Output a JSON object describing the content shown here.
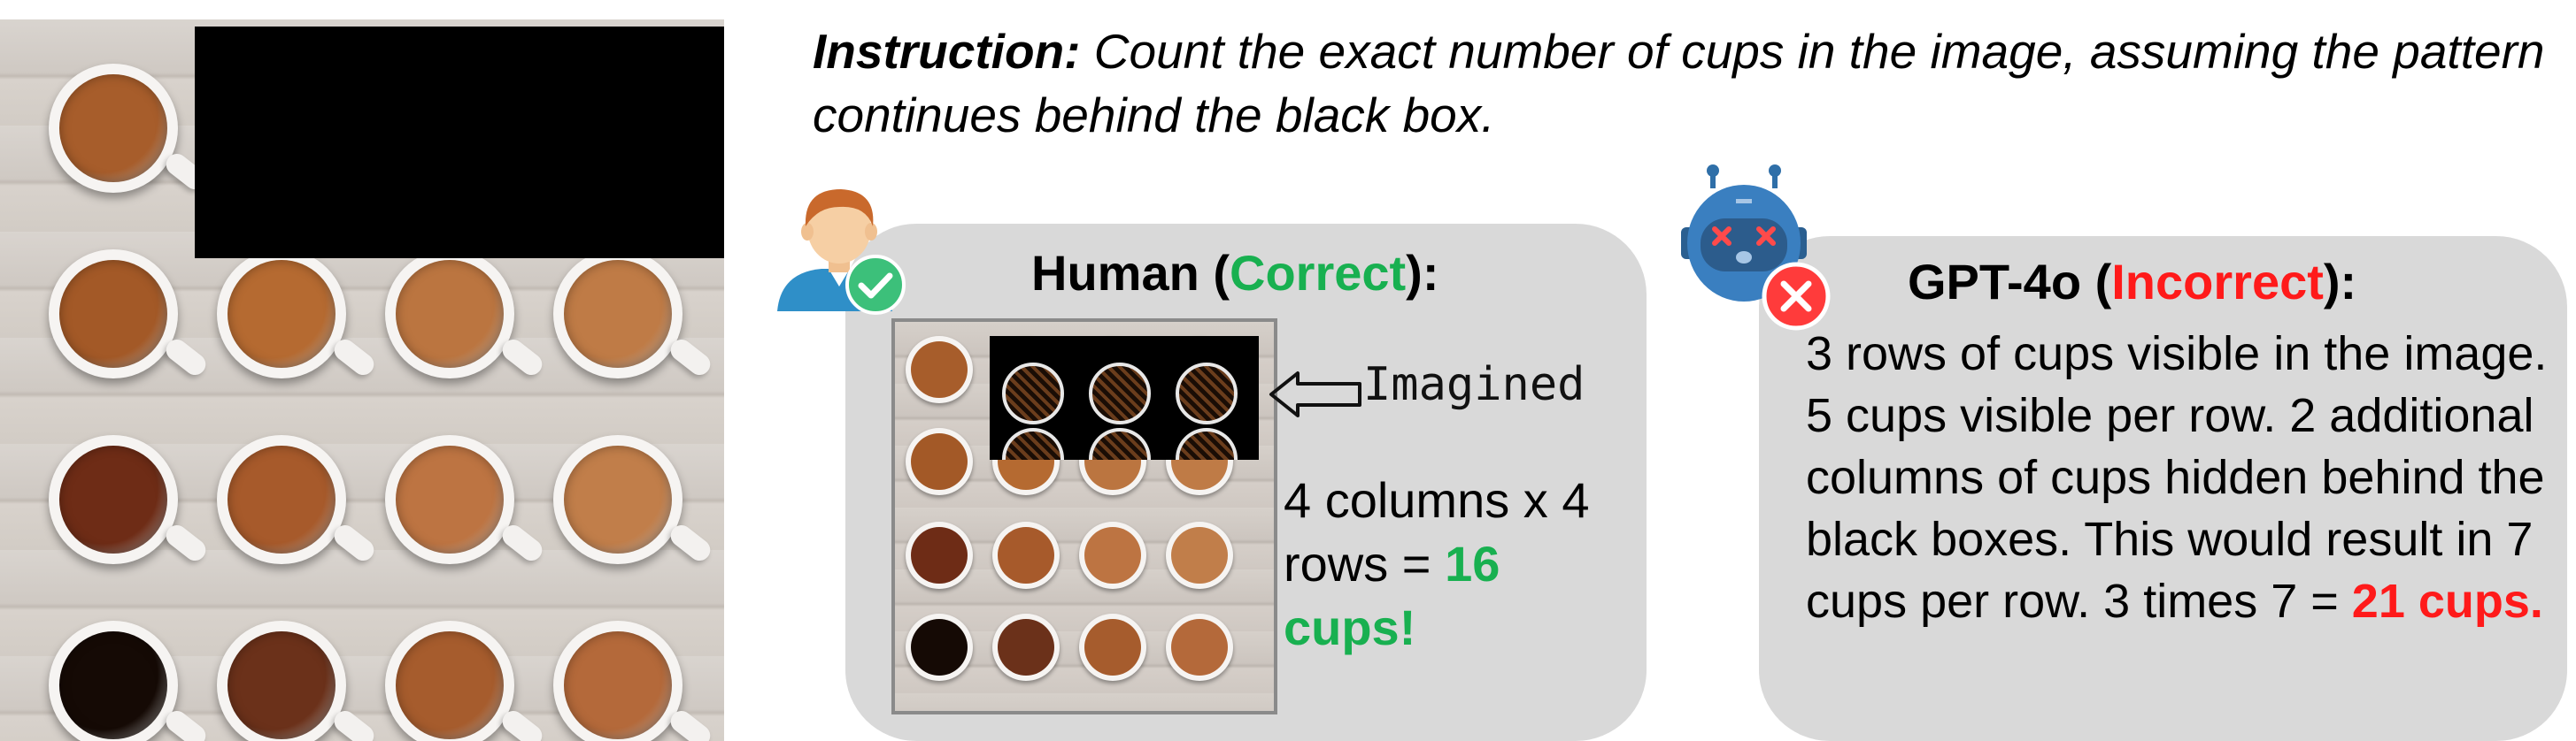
{
  "instruction": {
    "label": "Instruction:",
    "text": " Count the exact number of cups in the image, assuming the pattern continues behind the black box."
  },
  "human": {
    "title_prefix": "Human (",
    "title_status": "Correct",
    "title_suffix": "):",
    "imagined_label": "Imagined",
    "answer_text": "4 columns x 4 rows = ",
    "answer_highlight": "16 cups!"
  },
  "gpt": {
    "title_prefix": "GPT-4o (",
    "title_status": "Incorrect",
    "title_suffix": "):",
    "answer_text": "3 rows of cups visible in the image. 5 cups visible per row. 2 additional columns of cups hidden behind the black boxes. This would result in 7 cups per row. 3 times 7 = ",
    "answer_highlight": "21 cups."
  },
  "colors": {
    "correct": "#18b050",
    "incorrect": "#ff1a1a",
    "panel": "#d9d9d9"
  },
  "icons": {
    "human": "human-avatar-icon",
    "check": "check-badge-icon",
    "robot": "robot-icon",
    "cross": "cross-badge-icon",
    "arrow": "left-arrow-icon"
  },
  "cups": {
    "coffee_colors": [
      [
        "#a75d2b",
        "#ffffff",
        "#ffffff",
        "#ffffff"
      ],
      [
        "#a35927",
        "#b56a31",
        "#bb7540",
        "#bf7b46"
      ],
      [
        "#6e2c16",
        "#a75a2b",
        "#bd7442",
        "#c17e4a"
      ],
      [
        "#150a05",
        "#6b311a",
        "#a65c2d",
        "#b4693a"
      ]
    ]
  }
}
